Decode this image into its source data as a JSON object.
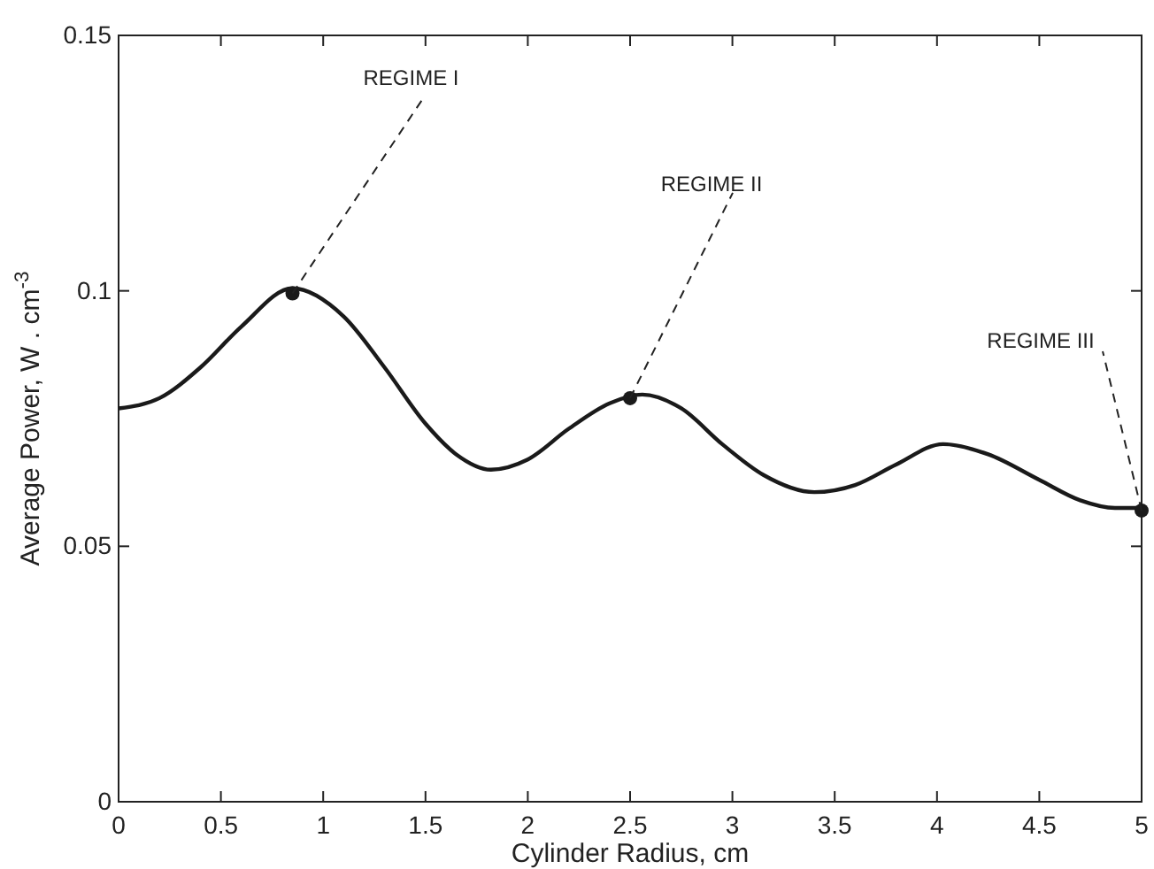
{
  "chart_data": {
    "type": "line",
    "xlabel": "Cylinder Radius,  cm",
    "ylabel": "Average Power, W . cm$^{-3}$",
    "xlim": [
      0,
      5
    ],
    "ylim": [
      0,
      0.15
    ],
    "xticks": [
      0,
      0.5,
      1,
      1.5,
      2,
      2.5,
      3,
      3.5,
      4,
      4.5,
      5
    ],
    "yticks": [
      0,
      0.05,
      0.1,
      0.15
    ],
    "grid": false,
    "series": [
      {
        "color": "#1a1a1a",
        "marker": "none",
        "line_style": "solid",
        "x": [
          0,
          0.2,
          0.4,
          0.6,
          0.85,
          1.1,
          1.3,
          1.5,
          1.65,
          1.82,
          2.0,
          2.2,
          2.4,
          2.56,
          2.75,
          2.95,
          3.15,
          3.4,
          3.6,
          3.8,
          4.03,
          4.25,
          4.5,
          4.7,
          4.87,
          5
        ],
        "values": [
          0.077,
          0.079,
          0.085,
          0.093,
          0.1005,
          0.095,
          0.085,
          0.074,
          0.068,
          0.065,
          0.067,
          0.073,
          0.078,
          0.0797,
          0.077,
          0.07,
          0.064,
          0.0606,
          0.062,
          0.066,
          0.07,
          0.068,
          0.063,
          0.059,
          0.0575,
          0.0575
        ]
      },
      {
        "type": "scatter",
        "color": "#1a1a1a",
        "marker": "circle",
        "x": [
          0.85,
          2.5,
          5
        ],
        "values": [
          0.0995,
          0.079,
          0.057
        ]
      }
    ],
    "annotations": [
      {
        "text": "REGIME I",
        "x": 0.85,
        "y": 0.0995
      },
      {
        "text": "REGIME II",
        "x": 2.5,
        "y": 0.079
      },
      {
        "text": "REGIME III",
        "x": 5,
        "y": 0.057
      }
    ]
  }
}
